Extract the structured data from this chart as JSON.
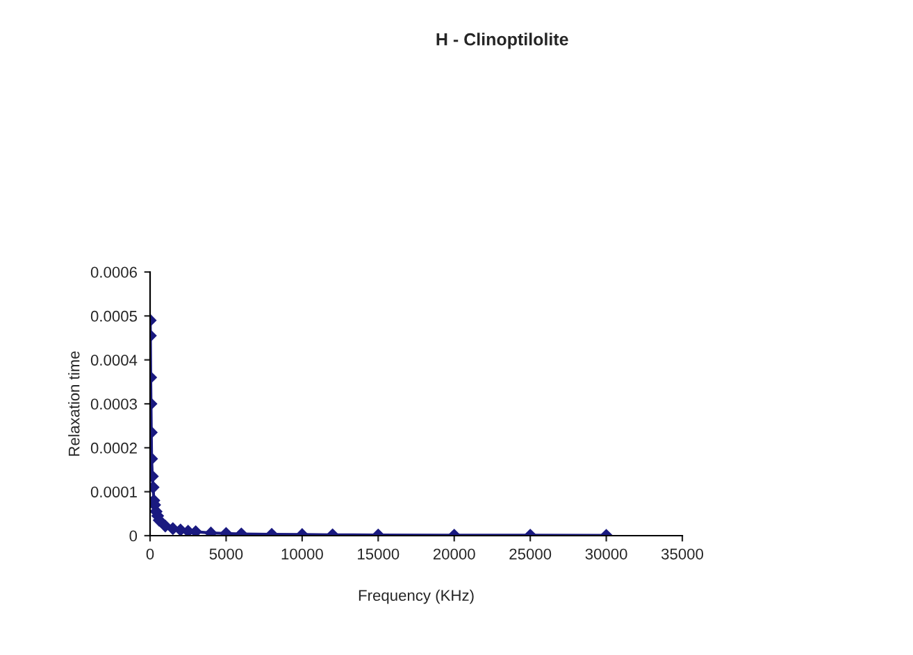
{
  "chart_data": {
    "type": "line",
    "title": "H - Clinoptilolite",
    "xlabel": "Frequency (KHz)",
    "ylabel": "Relaxation time",
    "series": [
      {
        "color": "#1a1a80",
        "x": [
          10,
          20,
          40,
          60,
          80,
          100,
          150,
          200,
          250,
          300,
          400,
          500,
          600,
          1000,
          1500,
          2000,
          2500,
          3000,
          4000,
          5000,
          6000,
          8000,
          10000,
          12000,
          15000,
          20000,
          25000,
          30000
        ],
        "values": [
          0.00049,
          0.000455,
          0.00036,
          0.0003,
          0.000235,
          0.000175,
          0.000135,
          0.00011,
          8e-05,
          7e-05,
          5.5e-05,
          4.5e-05,
          3.5e-05,
          2.2e-05,
          1.6e-05,
          1.3e-05,
          1e-05,
          9e-06,
          6e-06,
          5e-06,
          4e-06,
          3e-06,
          2.5e-06,
          2e-06,
          1.5e-06,
          1e-06,
          1e-06,
          8e-07
        ]
      }
    ],
    "xlim": [
      0,
      35000
    ],
    "xticks": [
      0,
      5000,
      10000,
      15000,
      20000,
      25000,
      30000,
      35000
    ],
    "ylim": [
      0,
      0.0006
    ],
    "yticks": [
      0,
      0.0001,
      0.0002,
      0.0003,
      0.0004,
      0.0005,
      0.0006
    ],
    "marker": "diamond",
    "grid": false,
    "legend": false
  }
}
